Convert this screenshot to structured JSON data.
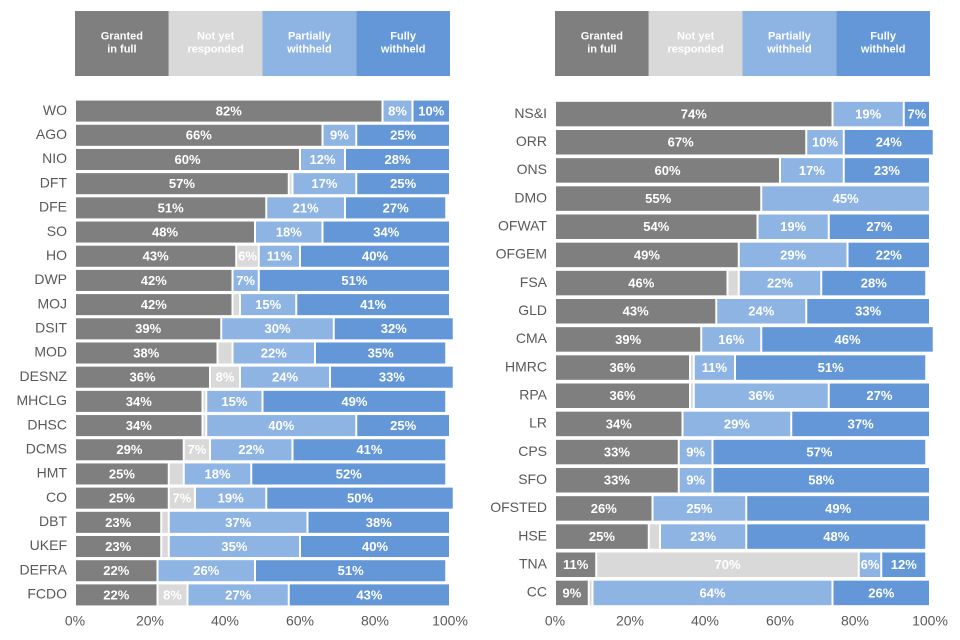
{
  "chart_data": [
    {
      "type": "stacked_bar_horizontal",
      "categories": [
        "WO",
        "AGO",
        "NIO",
        "DFT",
        "DFE",
        "SO",
        "HO",
        "DWP",
        "MOJ",
        "DSIT",
        "MOD",
        "DESNZ",
        "MHCLG",
        "DHSC",
        "DCMS",
        "HMT",
        "CO",
        "DBT",
        "UKEF",
        "DEFRA",
        "FCDO"
      ],
      "series": [
        {
          "name": "Granted in full",
          "color": "#7f7f7f",
          "values": [
            82,
            66,
            60,
            57,
            51,
            48,
            43,
            42,
            42,
            39,
            38,
            36,
            34,
            34,
            29,
            25,
            25,
            23,
            23,
            22,
            22
          ],
          "value_labels": [
            "82%",
            "66%",
            "60%",
            "57%",
            "51%",
            "48%",
            "43%",
            "42%",
            "42%",
            "39%",
            "38%",
            "36%",
            "34%",
            "34%",
            "29%",
            "25%",
            "25%",
            "23%",
            "23%",
            "22%",
            "22%"
          ]
        },
        {
          "name": "Not yet responded",
          "color": "#d9d9d9",
          "values": [
            0,
            0,
            0,
            1,
            0,
            0,
            6,
            0,
            2,
            0,
            4,
            8,
            1,
            1,
            7,
            4,
            7,
            2,
            2,
            0,
            8
          ],
          "value_labels": [
            null,
            null,
            null,
            null,
            null,
            null,
            "6%",
            null,
            null,
            null,
            null,
            "8%",
            null,
            null,
            "7%",
            null,
            "7%",
            null,
            null,
            null,
            "8%"
          ]
        },
        {
          "name": "Partially withheld",
          "color": "#8eb4e3",
          "values": [
            8,
            9,
            12,
            17,
            21,
            18,
            11,
            7,
            15,
            30,
            22,
            24,
            15,
            40,
            22,
            18,
            19,
            37,
            35,
            26,
            27
          ],
          "value_labels": [
            "8%",
            "9%",
            "12%",
            "17%",
            "21%",
            "18%",
            "11%",
            "7%",
            "15%",
            "30%",
            "22%",
            "24%",
            "15%",
            "40%",
            "22%",
            "18%",
            "19%",
            "37%",
            "35%",
            "26%",
            "27%"
          ]
        },
        {
          "name": "Fully withheld",
          "color": "#6497d7",
          "values": [
            10,
            25,
            28,
            25,
            27,
            34,
            40,
            51,
            41,
            32,
            35,
            33,
            49,
            25,
            41,
            52,
            50,
            38,
            40,
            51,
            43
          ],
          "value_labels": [
            "10%",
            "25%",
            "28%",
            "25%",
            "27%",
            "34%",
            "40%",
            "51%",
            "41%",
            "32%",
            "35%",
            "33%",
            "49%",
            "25%",
            "41%",
            "52%",
            "50%",
            "38%",
            "40%",
            "51%",
            "43%"
          ]
        }
      ],
      "xlim": [
        0,
        100
      ],
      "xticks": [
        {
          "value": 0,
          "label": "0%"
        },
        {
          "value": 20,
          "label": "20%"
        },
        {
          "value": 40,
          "label": "40%"
        },
        {
          "value": 60,
          "label": "60%"
        },
        {
          "value": 80,
          "label": "80%"
        },
        {
          "value": 100,
          "label": "100%"
        }
      ],
      "legend": "top"
    },
    {
      "type": "stacked_bar_horizontal",
      "categories": [
        "NS&I",
        "ORR",
        "ONS",
        "DMO",
        "OFWAT",
        "OFGEM",
        "FSA",
        "GLD",
        "CMA",
        "HMRC",
        "RPA",
        "LR",
        "CPS",
        "SFO",
        "OFSTED",
        "HSE",
        "TNA",
        "CC"
      ],
      "series": [
        {
          "name": "Granted in full",
          "color": "#7f7f7f",
          "values": [
            74,
            67,
            60,
            55,
            54,
            49,
            46,
            43,
            39,
            36,
            36,
            34,
            33,
            33,
            26,
            25,
            11,
            9
          ],
          "value_labels": [
            "74%",
            "67%",
            "60%",
            "55%",
            "54%",
            "49%",
            "46%",
            "43%",
            "39%",
            "36%",
            "36%",
            "34%",
            "33%",
            "33%",
            "26%",
            "25%",
            "11%",
            "9%"
          ]
        },
        {
          "name": "Not yet responded",
          "color": "#d9d9d9",
          "values": [
            0,
            0,
            0,
            0,
            0,
            0,
            3,
            0,
            0,
            1,
            1,
            0,
            0,
            0,
            0,
            3,
            70,
            1
          ],
          "value_labels": [
            null,
            null,
            null,
            null,
            null,
            null,
            null,
            null,
            null,
            null,
            null,
            null,
            null,
            null,
            null,
            null,
            "70%",
            null
          ]
        },
        {
          "name": "Partially withheld",
          "color": "#8eb4e3",
          "values": [
            19,
            10,
            17,
            45,
            19,
            29,
            22,
            24,
            16,
            11,
            36,
            29,
            9,
            9,
            25,
            23,
            6,
            64
          ],
          "value_labels": [
            "19%",
            "10%",
            "17%",
            "45%",
            "19%",
            "29%",
            "22%",
            "24%",
            "16%",
            "11%",
            "36%",
            "29%",
            "9%",
            "9%",
            "25%",
            "23%",
            "6%",
            "64%"
          ]
        },
        {
          "name": "Fully withheld",
          "color": "#6497d7",
          "values": [
            7,
            24,
            23,
            0,
            27,
            22,
            28,
            33,
            46,
            51,
            27,
            37,
            57,
            58,
            49,
            48,
            12,
            26
          ],
          "value_labels": [
            "7%",
            "24%",
            "23%",
            null,
            "27%",
            "22%",
            "28%",
            "33%",
            "46%",
            "51%",
            "27%",
            "37%",
            "57%",
            "58%",
            "49%",
            "48%",
            "12%",
            "26%"
          ]
        }
      ],
      "xlim": [
        0,
        100
      ],
      "xticks": [
        {
          "value": 0,
          "label": "0%"
        },
        {
          "value": 20,
          "label": "20%"
        },
        {
          "value": 40,
          "label": "40%"
        },
        {
          "value": 60,
          "label": "60%"
        },
        {
          "value": 80,
          "label": "80%"
        },
        {
          "value": 100,
          "label": "100%"
        }
      ],
      "legend": "top"
    }
  ]
}
